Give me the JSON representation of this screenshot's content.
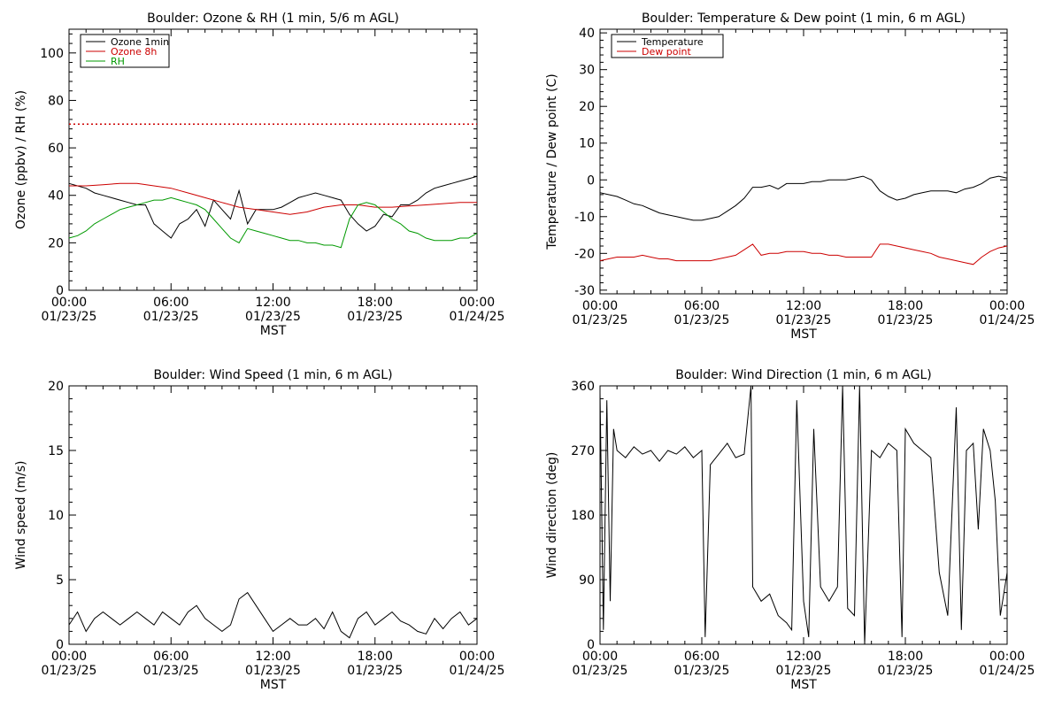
{
  "chart_data": [
    {
      "type": "line",
      "title": "Boulder: Ozone & RH (1 min, 5/6 m AGL)",
      "xlabel": "MST",
      "ylabel": "Ozone (ppbv) / RH (%)",
      "xlim": [
        0,
        24
      ],
      "ylim": [
        0,
        110
      ],
      "x_ticks": [
        {
          "value": 0,
          "time": "00:00",
          "date": "01/23/25"
        },
        {
          "value": 6,
          "time": "06:00",
          "date": "01/23/25"
        },
        {
          "value": 12,
          "time": "12:00",
          "date": "01/23/25"
        },
        {
          "value": 18,
          "time": "18:00",
          "date": "01/23/25"
        },
        {
          "value": 24,
          "time": "00:00",
          "date": "01/24/25"
        }
      ],
      "y_ticks": [
        "0",
        "20",
        "40",
        "60",
        "80",
        "100"
      ],
      "y_tick_values": [
        0,
        20,
        40,
        60,
        80,
        100
      ],
      "legend_position": "top-left",
      "reference_line": {
        "y": 70,
        "color": "#cc0000",
        "style": "dotted"
      },
      "series": [
        {
          "name": "Ozone 1min",
          "color": "#000000",
          "x": [
            0,
            0.5,
            1,
            1.5,
            2,
            2.5,
            3,
            3.5,
            4,
            4.5,
            5,
            5.5,
            6,
            6.5,
            7,
            7.5,
            8,
            8.5,
            9,
            9.5,
            10,
            10.5,
            11,
            11.5,
            12,
            12.5,
            13,
            13.5,
            14,
            14.5,
            15,
            15.5,
            16,
            16.5,
            17,
            17.5,
            18,
            18.5,
            19,
            19.5,
            20,
            20.5,
            21,
            21.5,
            22,
            22.5,
            23,
            23.5,
            24
          ],
          "y": [
            45,
            44,
            43,
            41,
            40,
            39,
            38,
            37,
            36,
            36,
            28,
            25,
            22,
            28,
            30,
            34,
            27,
            38,
            34,
            30,
            42,
            28,
            34,
            34,
            34,
            35,
            37,
            39,
            40,
            41,
            40,
            39,
            38,
            32,
            28,
            25,
            27,
            32,
            31,
            36,
            36,
            38,
            41,
            43,
            44,
            45,
            46,
            47,
            48
          ]
        },
        {
          "name": "Ozone 8h",
          "color": "#cc0000",
          "x": [
            0,
            1,
            2,
            3,
            4,
            5,
            6,
            7,
            8,
            9,
            10,
            11,
            12,
            13,
            14,
            15,
            16,
            17,
            18,
            19,
            20,
            21,
            22,
            23,
            24
          ],
          "y": [
            44,
            44,
            44.5,
            45,
            45,
            44,
            43,
            41,
            39,
            37,
            35,
            34,
            33,
            32,
            33,
            35,
            36,
            36,
            35,
            35,
            35.5,
            36,
            36.5,
            37,
            37
          ]
        },
        {
          "name": "RH",
          "color": "#009900",
          "x": [
            0,
            0.5,
            1,
            1.5,
            2,
            2.5,
            3,
            3.5,
            4,
            4.5,
            5,
            5.5,
            6,
            6.5,
            7,
            7.5,
            8,
            8.5,
            9,
            9.5,
            10,
            10.5,
            11,
            11.5,
            12,
            12.5,
            13,
            13.5,
            14,
            14.5,
            15,
            15.5,
            16,
            16.5,
            17,
            17.5,
            18,
            18.5,
            19,
            19.5,
            20,
            20.5,
            21,
            21.5,
            22,
            22.5,
            23,
            23.5,
            24
          ],
          "y": [
            22,
            23,
            25,
            28,
            30,
            32,
            34,
            35,
            36,
            37,
            38,
            38,
            39,
            38,
            37,
            36,
            34,
            30,
            26,
            22,
            20,
            26,
            25,
            24,
            23,
            22,
            21,
            21,
            20,
            20,
            19,
            19,
            18,
            30,
            36,
            37,
            36,
            33,
            30,
            28,
            25,
            24,
            22,
            21,
            21,
            21,
            22,
            22,
            24
          ]
        }
      ]
    },
    {
      "type": "line",
      "title": "Boulder: Temperature & Dew point (1 min, 6 m AGL)",
      "xlabel": "MST",
      "ylabel": "Temperature / Dew point (C)",
      "xlim": [
        0,
        24
      ],
      "ylim": [
        -31,
        41
      ],
      "x_ticks": [
        {
          "value": 0,
          "time": "00:00",
          "date": "01/23/25"
        },
        {
          "value": 6,
          "time": "06:00",
          "date": "01/23/25"
        },
        {
          "value": 12,
          "time": "12:00",
          "date": "01/23/25"
        },
        {
          "value": 18,
          "time": "18:00",
          "date": "01/23/25"
        },
        {
          "value": 24,
          "time": "00:00",
          "date": "01/24/25"
        }
      ],
      "y_ticks": [
        "-30",
        "-20",
        "-10",
        "0",
        "10",
        "20",
        "30",
        "40"
      ],
      "y_tick_values": [
        -30,
        -20,
        -10,
        0,
        10,
        20,
        30,
        40
      ],
      "legend_position": "top-left",
      "series": [
        {
          "name": "Temperature",
          "color": "#000000",
          "x": [
            0,
            0.5,
            1,
            1.5,
            2,
            2.5,
            3,
            3.5,
            4,
            4.5,
            5,
            5.5,
            6,
            6.5,
            7,
            7.5,
            8,
            8.5,
            9,
            9.5,
            10,
            10.5,
            11,
            11.5,
            12,
            12.5,
            13,
            13.5,
            14,
            14.5,
            15,
            15.5,
            16,
            16.5,
            17,
            17.5,
            18,
            18.5,
            19,
            19.5,
            20,
            20.5,
            21,
            21.5,
            22,
            22.5,
            23,
            23.5,
            24
          ],
          "y": [
            -3.5,
            -4,
            -4.5,
            -5.5,
            -6.5,
            -7,
            -8,
            -9,
            -9.5,
            -10,
            -10.5,
            -11,
            -11,
            -10.5,
            -10,
            -8.5,
            -7,
            -5,
            -2,
            -2,
            -1.5,
            -2.5,
            -1,
            -1,
            -1,
            -0.5,
            -0.5,
            0,
            0,
            0,
            0.5,
            1,
            0,
            -3,
            -4.5,
            -5.5,
            -5,
            -4,
            -3.5,
            -3,
            -3,
            -3,
            -3.5,
            -2.5,
            -2,
            -1,
            0.5,
            1,
            0.5
          ]
        },
        {
          "name": "Dew point",
          "color": "#cc0000",
          "x": [
            0,
            0.5,
            1,
            1.5,
            2,
            2.5,
            3,
            3.5,
            4,
            4.5,
            5,
            5.5,
            6,
            6.5,
            7,
            7.5,
            8,
            8.5,
            9,
            9.5,
            10,
            10.5,
            11,
            11.5,
            12,
            12.5,
            13,
            13.5,
            14,
            14.5,
            15,
            15.5,
            16,
            16.5,
            17,
            17.5,
            18,
            18.5,
            19,
            19.5,
            20,
            20.5,
            21,
            21.5,
            22,
            22.5,
            23,
            23.5,
            24
          ],
          "y": [
            -22,
            -21.5,
            -21,
            -21,
            -21,
            -20.5,
            -21,
            -21.5,
            -21.5,
            -22,
            -22,
            -22,
            -22,
            -22,
            -21.5,
            -21,
            -20.5,
            -19,
            -17.5,
            -20.5,
            -20,
            -20,
            -19.5,
            -19.5,
            -19.5,
            -20,
            -20,
            -20.5,
            -20.5,
            -21,
            -21,
            -21,
            -21,
            -17.5,
            -17.5,
            -18,
            -18.5,
            -19,
            -19.5,
            -20,
            -21,
            -21.5,
            -22,
            -22.5,
            -23,
            -21,
            -19.5,
            -18.5,
            -18
          ]
        }
      ]
    },
    {
      "type": "line",
      "title": "Boulder: Wind Speed (1 min, 6 m AGL)",
      "xlabel": "MST",
      "ylabel": "Wind speed (m/s)",
      "xlim": [
        0,
        24
      ],
      "ylim": [
        0,
        20
      ],
      "x_ticks": [
        {
          "value": 0,
          "time": "00:00",
          "date": "01/23/25"
        },
        {
          "value": 6,
          "time": "06:00",
          "date": "01/23/25"
        },
        {
          "value": 12,
          "time": "12:00",
          "date": "01/23/25"
        },
        {
          "value": 18,
          "time": "18:00",
          "date": "01/23/25"
        },
        {
          "value": 24,
          "time": "00:00",
          "date": "01/24/25"
        }
      ],
      "y_ticks": [
        "0",
        "5",
        "10",
        "15",
        "20"
      ],
      "y_tick_values": [
        0,
        5,
        10,
        15,
        20
      ],
      "series": [
        {
          "name": "",
          "color": "#000000",
          "x": [
            0,
            0.5,
            1,
            1.5,
            2,
            2.5,
            3,
            3.5,
            4,
            4.5,
            5,
            5.5,
            6,
            6.5,
            7,
            7.5,
            8,
            8.5,
            9,
            9.5,
            10,
            10.5,
            11,
            11.5,
            12,
            12.5,
            13,
            13.5,
            14,
            14.5,
            15,
            15.5,
            16,
            16.5,
            17,
            17.5,
            18,
            18.5,
            19,
            19.5,
            20,
            20.5,
            21,
            21.5,
            22,
            22.5,
            23,
            23.5,
            24
          ],
          "y": [
            1.5,
            2.5,
            1,
            2,
            2.5,
            2,
            1.5,
            2,
            2.5,
            2,
            1.5,
            2.5,
            2,
            1.5,
            2.5,
            3,
            2,
            1.5,
            1,
            1.5,
            3.5,
            4,
            3,
            2,
            1,
            1.5,
            2,
            1.5,
            1.5,
            2,
            1.2,
            2.5,
            1,
            0.5,
            2,
            2.5,
            1.5,
            2,
            2.5,
            1.8,
            1.5,
            1,
            0.8,
            2,
            1.2,
            2,
            2.5,
            1.5,
            2
          ]
        }
      ]
    },
    {
      "type": "line",
      "title": "Boulder: Wind Direction (1 min, 6 m AGL)",
      "xlabel": "MST",
      "ylabel": "Wind direction (deg)",
      "xlim": [
        0,
        24
      ],
      "ylim": [
        0,
        360
      ],
      "x_ticks": [
        {
          "value": 0,
          "time": "00:00",
          "date": "01/23/25"
        },
        {
          "value": 6,
          "time": "06:00",
          "date": "01/23/25"
        },
        {
          "value": 12,
          "time": "12:00",
          "date": "01/23/25"
        },
        {
          "value": 18,
          "time": "18:00",
          "date": "01/23/25"
        },
        {
          "value": 24,
          "time": "00:00",
          "date": "01/24/25"
        }
      ],
      "y_ticks": [
        "0",
        "90",
        "180",
        "270",
        "360"
      ],
      "y_tick_values": [
        0,
        90,
        180,
        270,
        360
      ],
      "series": [
        {
          "name": "",
          "color": "#000000",
          "x": [
            0,
            0.2,
            0.4,
            0.6,
            0.8,
            1,
            1.5,
            2,
            2.5,
            3,
            3.5,
            4,
            4.5,
            5,
            5.5,
            6,
            6.2,
            6.5,
            7,
            7.5,
            8,
            8.5,
            8.9,
            9,
            9.5,
            10,
            10.5,
            11,
            11.3,
            11.6,
            12,
            12.3,
            12.6,
            13,
            13.5,
            14,
            14.3,
            14.6,
            15,
            15.3,
            15.6,
            16,
            16.5,
            17,
            17.5,
            17.8,
            18,
            18.5,
            19,
            19.5,
            20,
            20.5,
            21,
            21.3,
            21.6,
            22,
            22.3,
            22.6,
            23,
            23.3,
            23.6,
            24
          ],
          "y": [
            350,
            20,
            340,
            60,
            300,
            270,
            260,
            275,
            265,
            270,
            255,
            270,
            265,
            275,
            260,
            270,
            10,
            250,
            265,
            280,
            260,
            265,
            360,
            80,
            60,
            70,
            40,
            30,
            20,
            340,
            60,
            10,
            300,
            80,
            60,
            80,
            360,
            50,
            40,
            360,
            0,
            270,
            260,
            280,
            270,
            10,
            300,
            280,
            270,
            260,
            100,
            40,
            330,
            20,
            270,
            280,
            160,
            300,
            270,
            200,
            40,
            100
          ]
        }
      ]
    }
  ]
}
